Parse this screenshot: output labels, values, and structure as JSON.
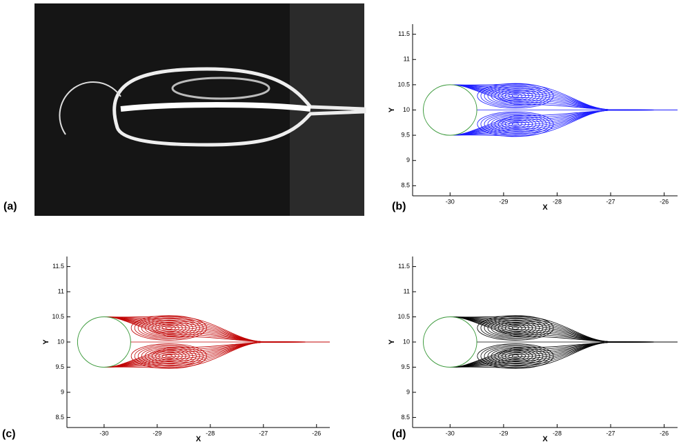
{
  "chart_data": [
    {
      "type": "photo",
      "panel_label": "(a)"
    },
    {
      "type": "streamline",
      "panel_label": "(b)",
      "color": "#1a1aff",
      "xlabel": "X",
      "ylabel": "Y",
      "xlim": [
        -30.7,
        -25.75
      ],
      "ylim": [
        8.3,
        11.7
      ],
      "xticks": [
        -30,
        -29,
        -28,
        -27,
        -26
      ],
      "yticks": [
        8.5,
        9,
        9.5,
        10,
        10.5,
        11,
        11.5
      ]
    },
    {
      "type": "streamline",
      "panel_label": "(c)",
      "color": "#c00000",
      "xlabel": "X",
      "ylabel": "Y",
      "xlim": [
        -30.7,
        -25.75
      ],
      "ylim": [
        8.3,
        11.7
      ],
      "xticks": [
        -30,
        -29,
        -28,
        -27,
        -26
      ],
      "yticks": [
        8.5,
        9,
        9.5,
        10,
        10.5,
        11,
        11.5
      ]
    },
    {
      "type": "streamline",
      "panel_label": "(d)",
      "color": "#000000",
      "xlabel": "X",
      "ylabel": "Y",
      "xlim": [
        -30.7,
        -25.75
      ],
      "ylim": [
        8.3,
        11.7
      ],
      "xticks": [
        -30,
        -29,
        -28,
        -27,
        -26
      ],
      "yticks": [
        8.5,
        9,
        9.5,
        10,
        10.5,
        11,
        11.5
      ]
    }
  ]
}
